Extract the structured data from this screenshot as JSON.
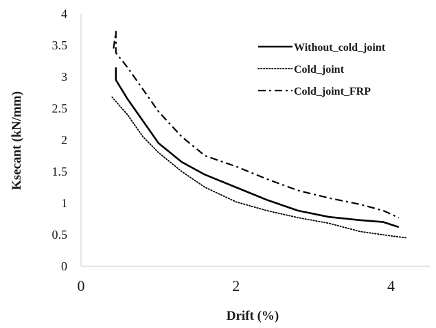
{
  "chart_data": {
    "type": "line",
    "xlabel": "Drift (%)",
    "ylabel": "Ksecant (kN/mm)",
    "xlim": [
      0,
      4.5
    ],
    "ylim": [
      0,
      4
    ],
    "x_ticks": [
      "0",
      "2",
      "4"
    ],
    "x_tick_values": [
      0,
      2,
      4
    ],
    "y_ticks": [
      "0",
      "0.5",
      "1",
      "1.5",
      "2",
      "2.5",
      "3",
      "3.5",
      "4"
    ],
    "y_tick_values": [
      0,
      0.5,
      1,
      1.5,
      2,
      2.5,
      3,
      3.5,
      4
    ],
    "grid": false,
    "legend_position": "top-right",
    "series": [
      {
        "name": "Without_cold_joint",
        "style": "solid",
        "color": "#000000",
        "points": [
          [
            0.45,
            3.15
          ],
          [
            0.45,
            2.95
          ],
          [
            0.6,
            2.65
          ],
          [
            0.8,
            2.3
          ],
          [
            1.0,
            1.95
          ],
          [
            1.3,
            1.65
          ],
          [
            1.6,
            1.45
          ],
          [
            2.0,
            1.25
          ],
          [
            2.4,
            1.05
          ],
          [
            2.8,
            0.88
          ],
          [
            3.2,
            0.78
          ],
          [
            3.6,
            0.73
          ],
          [
            3.9,
            0.7
          ],
          [
            4.1,
            0.62
          ]
        ]
      },
      {
        "name": "Cold_joint",
        "style": "dotted",
        "color": "#000000",
        "points": [
          [
            0.4,
            2.68
          ],
          [
            0.6,
            2.4
          ],
          [
            0.8,
            2.05
          ],
          [
            1.0,
            1.8
          ],
          [
            1.3,
            1.5
          ],
          [
            1.6,
            1.25
          ],
          [
            2.0,
            1.02
          ],
          [
            2.4,
            0.88
          ],
          [
            2.8,
            0.77
          ],
          [
            3.2,
            0.68
          ],
          [
            3.6,
            0.55
          ],
          [
            4.0,
            0.48
          ],
          [
            4.2,
            0.45
          ]
        ]
      },
      {
        "name": "Cold_joint_FRP",
        "style": "dashdot",
        "color": "#000000",
        "points": [
          [
            0.42,
            3.45
          ],
          [
            0.45,
            3.72
          ],
          [
            0.45,
            3.38
          ],
          [
            0.6,
            3.15
          ],
          [
            0.8,
            2.8
          ],
          [
            1.0,
            2.45
          ],
          [
            1.3,
            2.05
          ],
          [
            1.6,
            1.75
          ],
          [
            2.0,
            1.58
          ],
          [
            2.4,
            1.38
          ],
          [
            2.8,
            1.2
          ],
          [
            3.2,
            1.08
          ],
          [
            3.6,
            0.98
          ],
          [
            3.9,
            0.88
          ],
          [
            4.1,
            0.77
          ]
        ]
      }
    ]
  }
}
